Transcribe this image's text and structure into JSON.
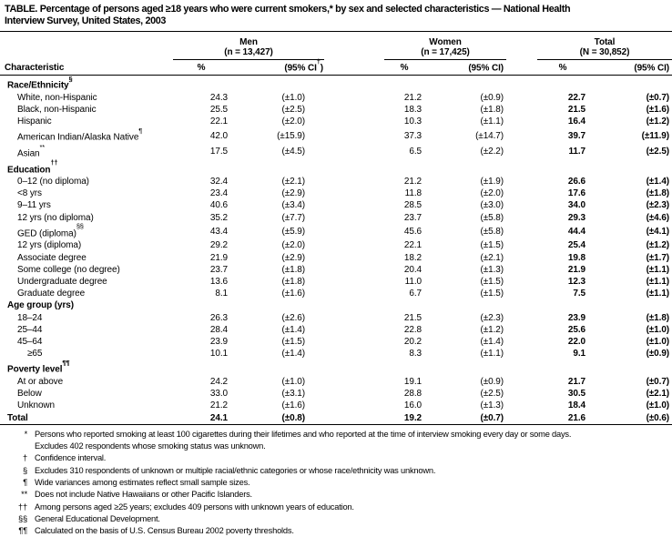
{
  "title": {
    "line1": "TABLE. Percentage of persons aged ≥18 years who were current smokers,* by sex and selected characteristics — National Health",
    "line2": "Interview Survey, United States, 2003"
  },
  "header": {
    "characteristic_label": "Characteristic",
    "groups": [
      {
        "name": "Men",
        "n": "(n = 13,427)",
        "pct": "%",
        "ci_main": "(95% CI",
        "ci_sup": "†",
        "ci_close": ")"
      },
      {
        "name": "Women",
        "n": "(n = 17,425)",
        "pct": "%",
        "ci_main": "(95% CI",
        "ci_sup": "",
        "ci_close": ")"
      },
      {
        "name": "Total",
        "n": "(N = 30,852)",
        "pct": "%",
        "ci_main": "(95% CI",
        "ci_sup": "",
        "ci_close": ")"
      }
    ]
  },
  "rows": [
    {
      "type": "section",
      "label": "Race/Ethnicity",
      "sup": "§"
    },
    {
      "type": "item",
      "label": "White, non-Hispanic",
      "values": [
        "24.3",
        "(±1.0)",
        "21.2",
        "(±0.9)",
        "22.7",
        "(±0.7)"
      ]
    },
    {
      "type": "item",
      "label": "Black, non-Hispanic",
      "values": [
        "25.5",
        "(±2.5)",
        "18.3",
        "(±1.8)",
        "21.5",
        "(±1.6)"
      ]
    },
    {
      "type": "item",
      "label": "Hispanic",
      "values": [
        "22.1",
        "(±2.0)",
        "10.3",
        "(±1.1)",
        "16.4",
        "(±1.2)"
      ]
    },
    {
      "type": "item",
      "label": "American Indian/Alaska Native",
      "sup": "¶",
      "values": [
        "42.0",
        "(±15.9)",
        "37.3",
        "(±14.7)",
        "39.7",
        "(±11.9)"
      ]
    },
    {
      "type": "item",
      "label": "Asian",
      "sup": "**",
      "values": [
        "17.5",
        "(±4.5)",
        "6.5",
        "(±2.2)",
        "11.7",
        "(±2.5)"
      ]
    },
    {
      "type": "section",
      "label": "Education",
      "sup": "††"
    },
    {
      "type": "item",
      "label": "0–12 (no diploma)",
      "values": [
        "32.4",
        "(±2.1)",
        "21.2",
        "(±1.9)",
        "26.6",
        "(±1.4)"
      ]
    },
    {
      "type": "item",
      "label": "<8 yrs",
      "values": [
        "23.4",
        "(±2.9)",
        "11.8",
        "(±2.0)",
        "17.6",
        "(±1.8)"
      ]
    },
    {
      "type": "item",
      "label": "9–11 yrs",
      "values": [
        "40.6",
        "(±3.4)",
        "28.5",
        "(±3.0)",
        "34.0",
        "(±2.3)"
      ]
    },
    {
      "type": "item",
      "label": "12 yrs (no diploma)",
      "values": [
        "35.2",
        "(±7.7)",
        "23.7",
        "(±5.8)",
        "29.3",
        "(±4.6)"
      ]
    },
    {
      "type": "item",
      "label": "GED (diploma)",
      "sup": "§§",
      "values": [
        "43.4",
        "(±5.9)",
        "45.6",
        "(±5.8)",
        "44.4",
        "(±4.1)"
      ]
    },
    {
      "type": "item",
      "label": "12 yrs (diploma)",
      "values": [
        "29.2",
        "(±2.0)",
        "22.1",
        "(±1.5)",
        "25.4",
        "(±1.2)"
      ]
    },
    {
      "type": "item",
      "label": "Associate degree",
      "values": [
        "21.9",
        "(±2.9)",
        "18.2",
        "(±2.1)",
        "19.8",
        "(±1.7)"
      ]
    },
    {
      "type": "item",
      "label": "Some college (no degree)",
      "values": [
        "23.7",
        "(±1.8)",
        "20.4",
        "(±1.3)",
        "21.9",
        "(±1.1)"
      ]
    },
    {
      "type": "item",
      "label": "Undergraduate degree",
      "values": [
        "13.6",
        "(±1.8)",
        "11.0",
        "(±1.5)",
        "12.3",
        "(±1.1)"
      ]
    },
    {
      "type": "item",
      "label": "Graduate degree",
      "values": [
        "8.1",
        "(±1.6)",
        "6.7",
        "(±1.5)",
        "7.5",
        "(±1.1)"
      ]
    },
    {
      "type": "section",
      "label": "Age group (yrs)"
    },
    {
      "type": "item",
      "label": "18–24",
      "values": [
        "26.3",
        "(±2.6)",
        "21.5",
        "(±2.3)",
        "23.9",
        "(±1.8)"
      ]
    },
    {
      "type": "item",
      "label": "25–44",
      "values": [
        "28.4",
        "(±1.4)",
        "22.8",
        "(±1.2)",
        "25.6",
        "(±1.0)"
      ]
    },
    {
      "type": "item",
      "label": "45–64",
      "values": [
        "23.9",
        "(±1.5)",
        "20.2",
        "(±1.4)",
        "22.0",
        "(±1.0)"
      ]
    },
    {
      "type": "item",
      "indent": 2,
      "label": "≥65",
      "values": [
        "10.1",
        "(±1.4)",
        "8.3",
        "(±1.1)",
        "9.1",
        "(±0.9)"
      ]
    },
    {
      "type": "section",
      "label": "Poverty level",
      "sup": "¶¶"
    },
    {
      "type": "item",
      "label": "At or above",
      "values": [
        "24.2",
        "(±1.0)",
        "19.1",
        "(±0.9)",
        "21.7",
        "(±0.7)"
      ]
    },
    {
      "type": "item",
      "label": "Below",
      "values": [
        "33.0",
        "(±3.1)",
        "28.8",
        "(±2.5)",
        "30.5",
        "(±2.1)"
      ]
    },
    {
      "type": "item",
      "label": "Unknown",
      "values": [
        "21.2",
        "(±1.6)",
        "16.0",
        "(±1.3)",
        "18.4",
        "(±1.0)"
      ]
    },
    {
      "type": "total",
      "label": "Total",
      "values": [
        "24.1",
        "(±0.8)",
        "19.2",
        "(±0.7)",
        "21.6",
        "(±0.6)"
      ]
    }
  ],
  "footnotes": [
    {
      "marker": "*",
      "lines": [
        "Persons who reported smoking at least 100 cigarettes during their lifetimes and who reported at the time of interview smoking every day or some days.",
        "Excludes 402 respondents whose smoking status was unknown."
      ]
    },
    {
      "marker": "†",
      "lines": [
        "Confidence interval."
      ]
    },
    {
      "marker": "§",
      "lines": [
        "Excludes 310 respondents of unknown or multiple racial/ethnic categories or whose race/ethnicity was unknown."
      ]
    },
    {
      "marker": "¶",
      "lines": [
        "Wide variances among estimates reflect small sample sizes."
      ]
    },
    {
      "marker": "**",
      "lines": [
        "Does not include Native Hawaiians or other Pacific Islanders."
      ]
    },
    {
      "marker": "††",
      "lines": [
        "Among persons aged ≥25 years; excludes 409 persons with unknown years of education."
      ]
    },
    {
      "marker": "§§",
      "lines": [
        "General Educational Development."
      ]
    },
    {
      "marker": "¶¶",
      "lines": [
        "Calculated on the basis of U.S. Census Bureau 2002 poverty thresholds."
      ]
    }
  ]
}
